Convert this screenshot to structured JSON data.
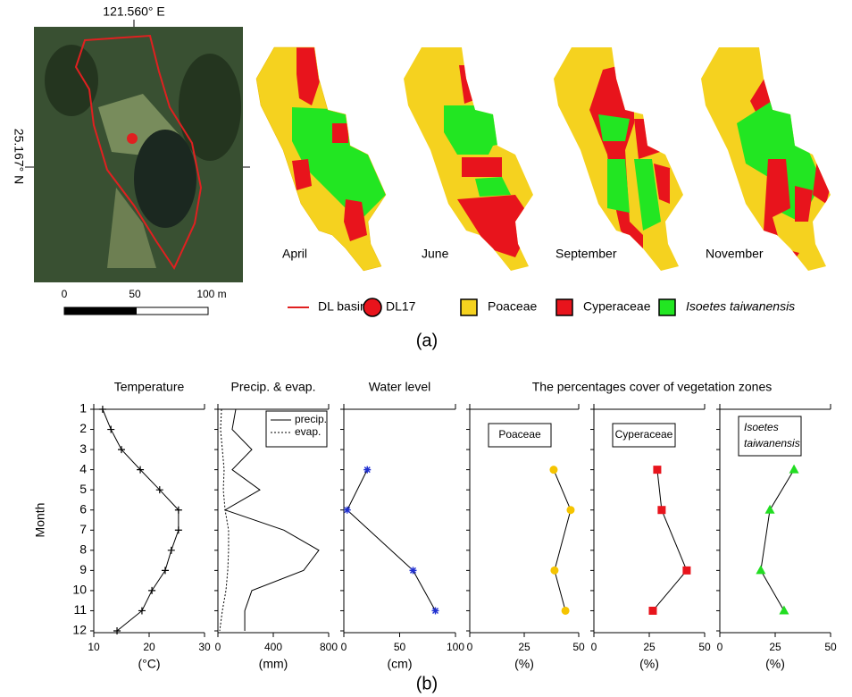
{
  "panel_a": {
    "lon_label": "121.560° E",
    "lat_label": "25.167° N",
    "scale_labels": [
      "0",
      "50",
      "100 m"
    ],
    "months": [
      "April",
      "June",
      "September",
      "November"
    ],
    "legend": [
      "DL basin",
      "DL17",
      "Poaceae",
      "Cyperaceae",
      "Isoetes taiwanensis"
    ],
    "label": "(a)"
  },
  "panel_b": {
    "label": "(b)",
    "group_title": "The  percentages cover of vegetation zones"
  },
  "chart_data": [
    {
      "type": "line",
      "title": "Temperature",
      "xlabel": "(°C)",
      "xlim": [
        10,
        30
      ],
      "xticks": [
        10,
        20,
        30
      ],
      "ylabel": "Month",
      "ylim": [
        12,
        1
      ],
      "yticks": [
        1,
        2,
        3,
        4,
        5,
        6,
        7,
        8,
        9,
        10,
        11,
        12
      ],
      "y": [
        1,
        2,
        3,
        4,
        5,
        6,
        7,
        8,
        9,
        10,
        11,
        12
      ],
      "values": [
        11.6,
        13.1,
        15,
        18.4,
        21.9,
        25.3,
        25.3,
        24,
        22.9,
        20.5,
        18.7,
        14.2
      ],
      "color": "#000000",
      "marker": "plus"
    },
    {
      "type": "line",
      "title": "Precip. & evap.",
      "xlabel": "(mm)",
      "xlim": [
        0,
        800
      ],
      "xticks": [
        0,
        400,
        800
      ],
      "y": [
        1,
        2,
        3,
        4,
        5,
        6,
        7,
        8,
        9,
        10,
        11,
        12
      ],
      "legend": "top right",
      "series": [
        {
          "name": "precip.",
          "color": "#000000",
          "dash": "solid",
          "values": [
            129,
            103,
            245,
            103,
            303,
            52,
            477,
            729,
            619,
            245,
            194,
            194
          ]
        },
        {
          "name": "evap.",
          "color": "#000000",
          "dash": "dotted",
          "values": [
            26,
            19,
            32,
            45,
            39,
            52,
            77,
            77,
            71,
            58,
            32,
            13
          ]
        }
      ]
    },
    {
      "type": "line",
      "title": "Water level",
      "xlabel": "(cm)",
      "xlim": [
        0,
        100
      ],
      "xticks": [
        0,
        50,
        100
      ],
      "y": [
        4,
        6,
        9,
        11
      ],
      "values": [
        21,
        3,
        62,
        82
      ],
      "color": "#1f2fd0",
      "marker": "asterisk"
    },
    {
      "type": "line",
      "box_label": [
        "Poaceae"
      ],
      "xlabel": "(%)",
      "xlim": [
        0,
        50
      ],
      "xticks": [
        0,
        25,
        50
      ],
      "y": [
        4,
        6,
        9,
        11
      ],
      "values": [
        38.5,
        46.3,
        38.9,
        43.9
      ],
      "color": "#f5c400",
      "marker": "circle"
    },
    {
      "type": "line",
      "box_label": [
        "Cyperaceae"
      ],
      "xlabel": "(%)",
      "xlim": [
        0,
        50
      ],
      "xticks": [
        0,
        25,
        50
      ],
      "y": [
        4,
        6,
        9,
        11
      ],
      "values": [
        28.6,
        30.6,
        41.9,
        26.6
      ],
      "color": "#e8141c",
      "marker": "square"
    },
    {
      "type": "line",
      "box_label": [
        "Isoetes",
        "taiwanensis"
      ],
      "xlabel": "(%)",
      "xlim": [
        0,
        50
      ],
      "xticks": [
        0,
        25,
        50
      ],
      "y": [
        4,
        6,
        9,
        11
      ],
      "values": [
        33.5,
        22.6,
        18.5,
        29
      ],
      "color": "#22dd22",
      "marker": "triangle"
    }
  ]
}
